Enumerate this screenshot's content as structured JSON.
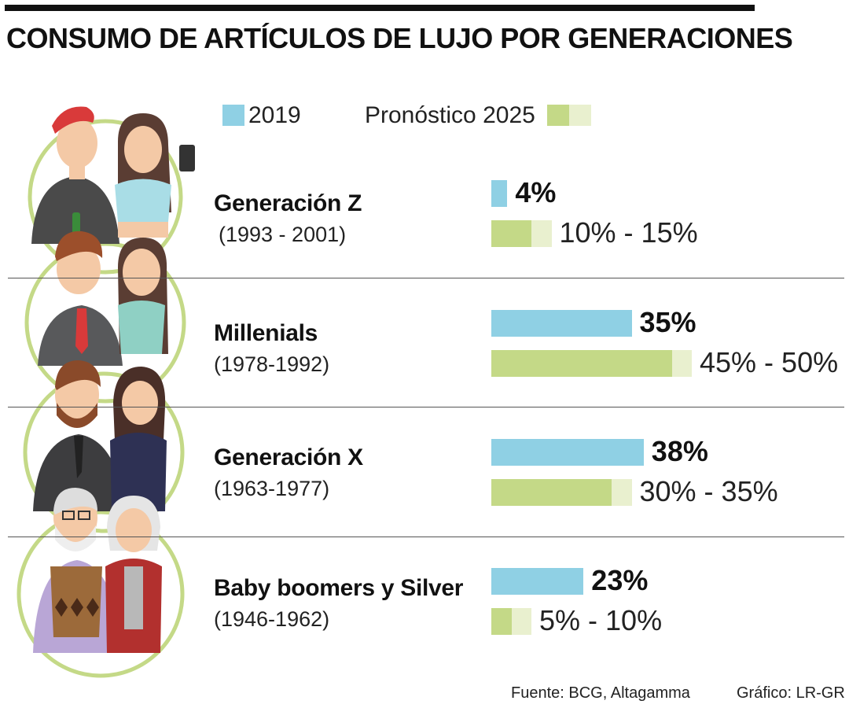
{
  "title": "CONSUMO DE ARTÍCULOS DE LUJO POR GENERACIONES",
  "colors": {
    "bar_2019": "#8fd0e4",
    "bar_2025_low": "#c4d987",
    "bar_2025_high": "#e9f0cf",
    "circle": "#c4d987"
  },
  "chart_data": {
    "type": "bar",
    "title": "CONSUMO DE ARTÍCULOS DE LUJO POR GENERACIONES",
    "unit": "%",
    "legend": [
      "2019",
      "Pronóstico 2025"
    ],
    "legend_placement": "top",
    "categories": [
      {
        "name": "Generación Z",
        "years": "(1993 - 2001)",
        "value_2019": 4,
        "forecast_2025": [
          10,
          15
        ],
        "label_2019": "4%",
        "label_2025": "10% - 15%"
      },
      {
        "name": "Millenials",
        "years": "(1978-1992)",
        "value_2019": 35,
        "forecast_2025": [
          45,
          50
        ],
        "label_2019": "35%",
        "label_2025": "45% - 50%"
      },
      {
        "name": "Generación X",
        "years": "(1963-1977)",
        "value_2019": 38,
        "forecast_2025": [
          30,
          35
        ],
        "label_2019": "38%",
        "label_2025": "30% - 35%"
      },
      {
        "name": "Baby boomers y Silver",
        "years": "(1946-1962)",
        "value_2019": 23,
        "forecast_2025": [
          5,
          10
        ],
        "label_2019": "23%",
        "label_2025": "5% - 10%"
      }
    ]
  },
  "footer": {
    "source": "Fuente: BCG, Altagamma",
    "credit": "Gráfico: LR-GR"
  },
  "illustration": {
    "icon": "generations-people-illustration"
  }
}
